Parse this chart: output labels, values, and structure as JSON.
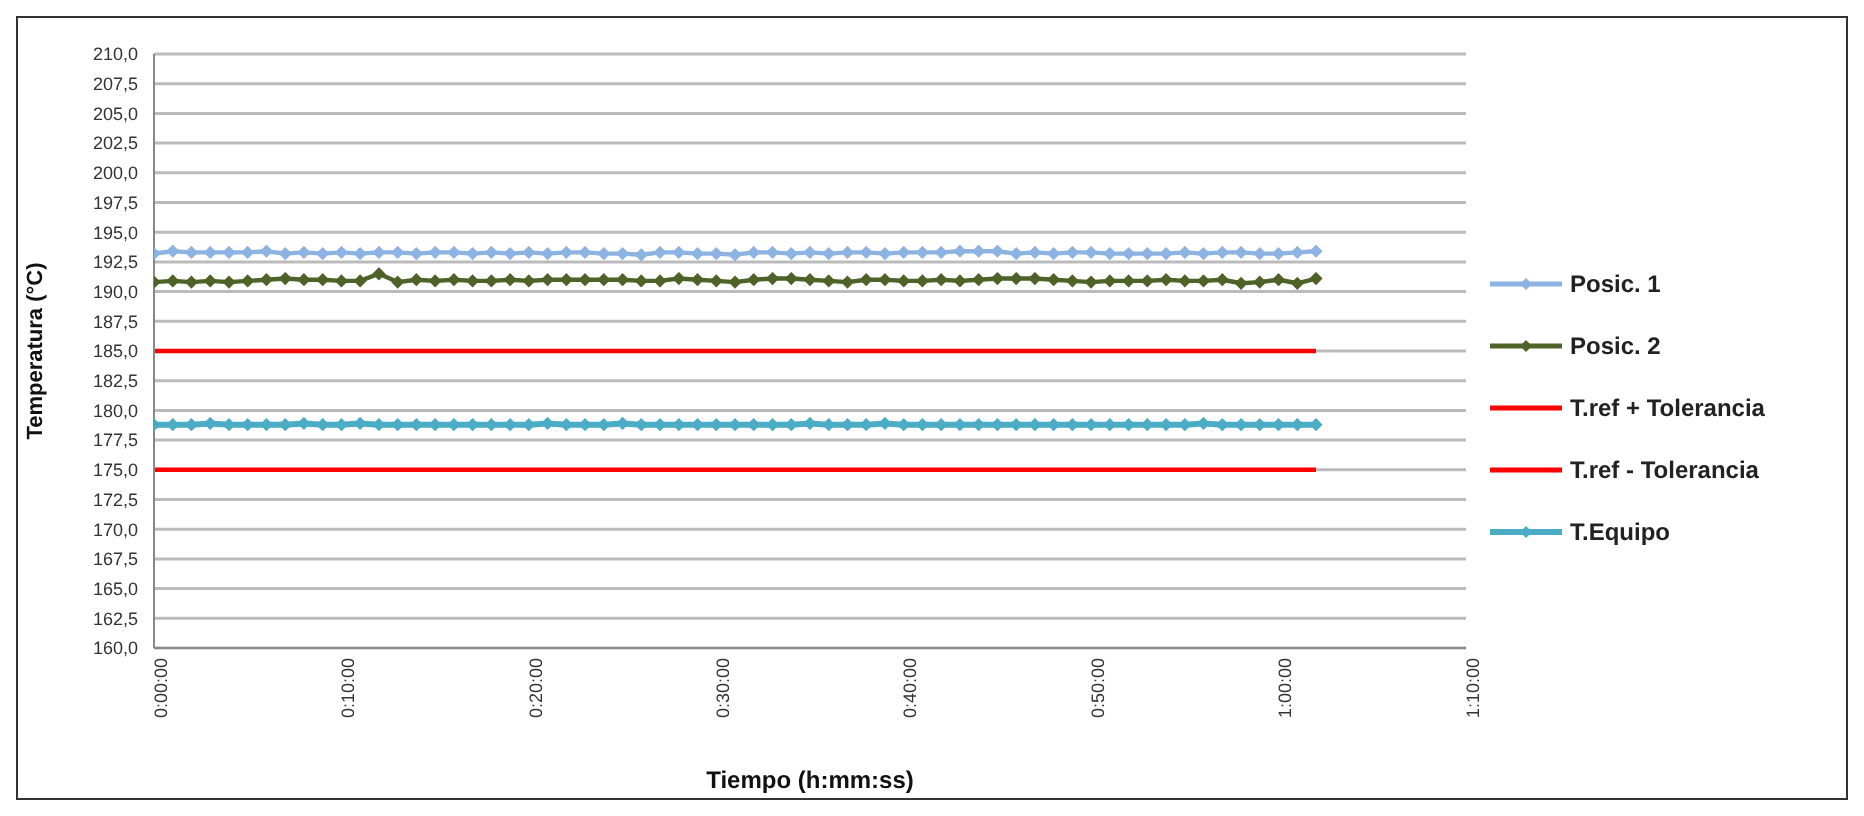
{
  "chart_data": {
    "type": "line",
    "xlabel": "Tiempo (h:mm:ss)",
    "ylabel": "Temperatura (°C)",
    "x": [
      0,
      0.0167,
      0.0333,
      0.05,
      0.0667,
      0.0833,
      0.1,
      0.1167,
      0.1333,
      0.15,
      0.1667,
      0.1833,
      0.2,
      0.2167,
      0.2333,
      0.25,
      0.2667,
      0.2833,
      0.3,
      0.3167,
      0.3333,
      0.35,
      0.3667,
      0.3833,
      0.4,
      0.4167,
      0.4333,
      0.45,
      0.4667,
      0.4833,
      0.5,
      0.5167,
      0.5333,
      0.55,
      0.5667,
      0.5833,
      0.6,
      0.6167,
      0.6333,
      0.65,
      0.6667,
      0.6833,
      0.7,
      0.7167,
      0.7333,
      0.75,
      0.7667,
      0.7833,
      0.8,
      0.8167,
      0.8333,
      0.85,
      0.8667,
      0.8833,
      0.9,
      0.9167,
      0.9333,
      0.95,
      0.9667,
      0.9833,
      1.0,
      1.0167,
      1.0333
    ],
    "series": [
      {
        "name": "Posic. 1",
        "color": "#8db3e2",
        "marker": "diamond",
        "values": [
          193.2,
          193.4,
          193.3,
          193.3,
          193.3,
          193.3,
          193.4,
          193.2,
          193.3,
          193.2,
          193.3,
          193.2,
          193.3,
          193.3,
          193.2,
          193.3,
          193.3,
          193.2,
          193.3,
          193.2,
          193.3,
          193.2,
          193.3,
          193.3,
          193.2,
          193.2,
          193.1,
          193.3,
          193.3,
          193.2,
          193.2,
          193.1,
          193.3,
          193.3,
          193.2,
          193.3,
          193.2,
          193.3,
          193.3,
          193.2,
          193.3,
          193.3,
          193.3,
          193.4,
          193.4,
          193.4,
          193.2,
          193.3,
          193.2,
          193.3,
          193.3,
          193.2,
          193.2,
          193.2,
          193.2,
          193.3,
          193.2,
          193.3,
          193.3,
          193.2,
          193.2,
          193.3,
          193.4
        ]
      },
      {
        "name": "Posic. 2",
        "color": "#4f6228",
        "marker": "diamond",
        "values": [
          190.8,
          190.9,
          190.8,
          190.9,
          190.8,
          190.9,
          191.0,
          191.1,
          191.0,
          191.0,
          190.9,
          190.9,
          191.5,
          190.8,
          191.0,
          190.9,
          191.0,
          190.9,
          190.9,
          191.0,
          190.9,
          191.0,
          191.0,
          191.0,
          191.0,
          191.0,
          190.9,
          190.9,
          191.1,
          191.0,
          190.9,
          190.8,
          191.0,
          191.1,
          191.1,
          191.0,
          190.9,
          190.8,
          191.0,
          191.0,
          190.9,
          190.9,
          191.0,
          190.9,
          191.0,
          191.1,
          191.1,
          191.1,
          191.0,
          190.9,
          190.8,
          190.9,
          190.9,
          190.9,
          191.0,
          190.9,
          190.9,
          191.0,
          190.7,
          190.8,
          191.0,
          190.7,
          191.1
        ]
      },
      {
        "name": "T.ref + Tolerancia",
        "color": "#ff0000",
        "marker": "none",
        "values": [
          185,
          185,
          185,
          185,
          185,
          185,
          185,
          185,
          185,
          185,
          185,
          185,
          185,
          185,
          185,
          185,
          185,
          185,
          185,
          185,
          185,
          185,
          185,
          185,
          185,
          185,
          185,
          185,
          185,
          185,
          185,
          185,
          185,
          185,
          185,
          185,
          185,
          185,
          185,
          185,
          185,
          185,
          185,
          185,
          185,
          185,
          185,
          185,
          185,
          185,
          185,
          185,
          185,
          185,
          185,
          185,
          185,
          185,
          185,
          185,
          185,
          185,
          185
        ]
      },
      {
        "name": "T.ref - Tolerancia",
        "color": "#ff0000",
        "marker": "none",
        "values": [
          175,
          175,
          175,
          175,
          175,
          175,
          175,
          175,
          175,
          175,
          175,
          175,
          175,
          175,
          175,
          175,
          175,
          175,
          175,
          175,
          175,
          175,
          175,
          175,
          175,
          175,
          175,
          175,
          175,
          175,
          175,
          175,
          175,
          175,
          175,
          175,
          175,
          175,
          175,
          175,
          175,
          175,
          175,
          175,
          175,
          175,
          175,
          175,
          175,
          175,
          175,
          175,
          175,
          175,
          175,
          175,
          175,
          175,
          175,
          175,
          175,
          175,
          175
        ]
      },
      {
        "name": "T.Equipo",
        "color": "#4bacc6",
        "marker": "diamond",
        "values": [
          178.8,
          178.8,
          178.8,
          178.9,
          178.8,
          178.8,
          178.8,
          178.8,
          178.9,
          178.8,
          178.8,
          178.9,
          178.8,
          178.8,
          178.8,
          178.8,
          178.8,
          178.8,
          178.8,
          178.8,
          178.8,
          178.9,
          178.8,
          178.8,
          178.8,
          178.9,
          178.8,
          178.8,
          178.8,
          178.8,
          178.8,
          178.8,
          178.8,
          178.8,
          178.8,
          178.9,
          178.8,
          178.8,
          178.8,
          178.9,
          178.8,
          178.8,
          178.8,
          178.8,
          178.8,
          178.8,
          178.8,
          178.8,
          178.8,
          178.8,
          178.8,
          178.8,
          178.8,
          178.8,
          178.8,
          178.8,
          178.9,
          178.8,
          178.8,
          178.8,
          178.8,
          178.8,
          178.8
        ]
      }
    ],
    "xlim": [
      0,
      1.1667
    ],
    "xticks": [
      {
        "value": 0,
        "label": "0:00:00"
      },
      {
        "value": 0.1667,
        "label": "0:10:00"
      },
      {
        "value": 0.3333,
        "label": "0:20:00"
      },
      {
        "value": 0.5,
        "label": "0:30:00"
      },
      {
        "value": 0.6667,
        "label": "0:40:00"
      },
      {
        "value": 0.8333,
        "label": "0:50:00"
      },
      {
        "value": 1.0,
        "label": "1:00:00"
      },
      {
        "value": 1.1667,
        "label": "1:10:00"
      }
    ],
    "ylim": [
      160,
      210
    ],
    "yticks": [
      {
        "value": 160,
        "label": "160,0"
      },
      {
        "value": 162.5,
        "label": "162,5"
      },
      {
        "value": 165,
        "label": "165,0"
      },
      {
        "value": 167.5,
        "label": "167,5"
      },
      {
        "value": 170,
        "label": "170,0"
      },
      {
        "value": 172.5,
        "label": "172,5"
      },
      {
        "value": 175,
        "label": "175,0"
      },
      {
        "value": 177.5,
        "label": "177,5"
      },
      {
        "value": 180,
        "label": "180,0"
      },
      {
        "value": 182.5,
        "label": "182,5"
      },
      {
        "value": 185,
        "label": "185,0"
      },
      {
        "value": 187.5,
        "label": "187,5"
      },
      {
        "value": 190,
        "label": "190,0"
      },
      {
        "value": 192.5,
        "label": "192,5"
      },
      {
        "value": 195,
        "label": "195,0"
      },
      {
        "value": 197.5,
        "label": "197,5"
      },
      {
        "value": 200,
        "label": "200,0"
      },
      {
        "value": 202.5,
        "label": "202,5"
      },
      {
        "value": 205,
        "label": "205,0"
      },
      {
        "value": 207.5,
        "label": "207,5"
      },
      {
        "value": 210,
        "label": "210,0"
      }
    ],
    "grid": "y",
    "legend": "right",
    "line_style": "solid"
  }
}
